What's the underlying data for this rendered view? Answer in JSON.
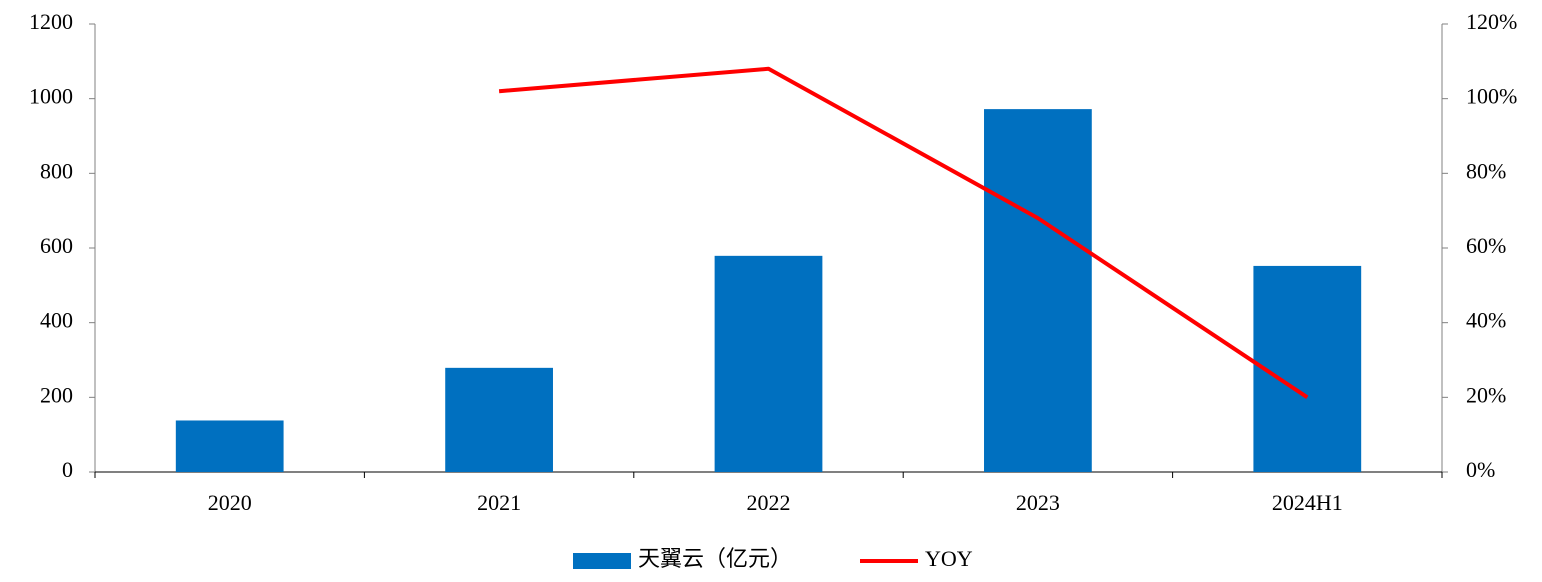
{
  "chart_data": {
    "type": "bar-line",
    "categories": [
      "2020",
      "2021",
      "2022",
      "2023",
      "2024H1"
    ],
    "series": [
      {
        "name": "天翼云（亿元）",
        "color": "#0070c0",
        "type": "bar",
        "values": [
          138,
          279,
          579,
          972,
          552
        ]
      },
      {
        "name": "YOY",
        "color": "#ff0000",
        "type": "line",
        "axis": "y2",
        "values": [
          null,
          102,
          108,
          68,
          20
        ]
      }
    ],
    "ylim": [
      0,
      1200
    ],
    "yticks": [
      0,
      200,
      400,
      600,
      800,
      1000,
      1200
    ],
    "y2lim": [
      0,
      120
    ],
    "y2ticks": [
      {
        "value": 0,
        "label": "0%"
      },
      {
        "value": 20,
        "label": "20%"
      },
      {
        "value": 40,
        "label": "40%"
      },
      {
        "value": 60,
        "label": "60%"
      },
      {
        "value": 80,
        "label": "80%"
      },
      {
        "value": 100,
        "label": "100%"
      },
      {
        "value": 120,
        "label": "120%"
      }
    ],
    "legend": "bottom"
  }
}
